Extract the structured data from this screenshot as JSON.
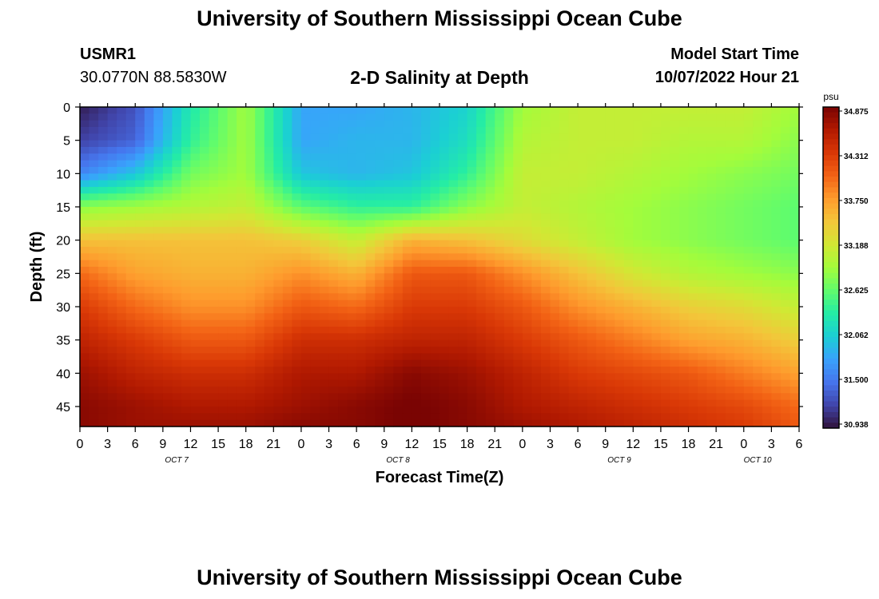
{
  "header": {
    "title": "University of Southern Mississippi Ocean Cube",
    "station_id": "USMR1",
    "coordinates": "30.0770N  88.5830W",
    "subtitle": "2-D Salinity at Depth",
    "model_start_label": "Model Start Time",
    "model_start_value": "10/07/2022 Hour 21"
  },
  "footer": {
    "title": "University of Southern Mississippi Ocean Cube"
  },
  "chart_data": {
    "type": "heatmap",
    "title": "2-D Salinity at Depth",
    "xlabel": "Forecast Time(Z)",
    "ylabel": "Depth (ft)",
    "x_tick_labels": [
      "0",
      "3",
      "6",
      "9",
      "12",
      "15",
      "18",
      "21",
      "0",
      "3",
      "6",
      "9",
      "12",
      "15",
      "18",
      "21",
      "0",
      "3",
      "6",
      "9",
      "12",
      "15",
      "18",
      "21",
      "0",
      "3",
      "6"
    ],
    "x_day_labels": [
      {
        "label": "OCT 7",
        "tick_index": 3.5
      },
      {
        "label": "OCT 8",
        "tick_index": 11.5
      },
      {
        "label": "OCT 9",
        "tick_index": 19.5
      },
      {
        "label": "OCT 10",
        "tick_index": 24.5
      }
    ],
    "x_hours_range": [
      0,
      78
    ],
    "ylim": [
      0,
      48
    ],
    "y_ticks": [
      0,
      5,
      10,
      15,
      20,
      25,
      30,
      35,
      40,
      45
    ],
    "colorbar": {
      "unit": "psu",
      "min": 30.938,
      "max": 34.875,
      "tick_labels": [
        "34.875",
        "34.312",
        "33.750",
        "33.188",
        "32.625",
        "32.062",
        "31.500",
        "30.938"
      ],
      "colors": [
        "#30123b",
        "#4145ab",
        "#4675ed",
        "#39a2fc",
        "#1bcfd4",
        "#24eca6",
        "#61fc6c",
        "#a4fc3b",
        "#d1e834",
        "#f3c63a",
        "#fe9b2d",
        "#f36315",
        "#d93806",
        "#b11901",
        "#7a0403"
      ]
    },
    "field_description": "Salinity (psu) over forecast time (hours since Oct 7 00Z) and depth (ft)",
    "field": {
      "times_h": [
        0,
        6,
        12,
        18,
        24,
        30,
        36,
        42,
        48,
        54,
        60,
        66,
        72,
        78
      ],
      "depths_ft": [
        0,
        5,
        10,
        15,
        20,
        25,
        30,
        35,
        40,
        45,
        48
      ],
      "values": [
        [
          31.0,
          31.3,
          32.3,
          32.9,
          31.8,
          31.8,
          31.9,
          32.1,
          32.9,
          33.1,
          33.1,
          33.1,
          33.1,
          32.9
        ],
        [
          31.2,
          31.4,
          32.4,
          32.9,
          31.8,
          31.9,
          31.9,
          32.2,
          33.0,
          33.1,
          33.1,
          33.0,
          33.0,
          32.8
        ],
        [
          31.6,
          32.0,
          32.7,
          32.9,
          32.0,
          31.9,
          32.0,
          32.4,
          33.1,
          33.1,
          33.0,
          32.9,
          32.8,
          32.7
        ],
        [
          32.8,
          32.9,
          33.0,
          33.1,
          32.6,
          32.4,
          32.4,
          32.8,
          33.1,
          33.0,
          32.9,
          32.8,
          32.7,
          32.6
        ],
        [
          33.5,
          33.5,
          33.5,
          33.5,
          33.4,
          33.1,
          33.6,
          33.5,
          33.3,
          33.1,
          32.9,
          32.8,
          32.7,
          32.6
        ],
        [
          34.0,
          33.7,
          33.6,
          33.6,
          33.8,
          33.6,
          34.1,
          34.1,
          33.8,
          33.5,
          33.2,
          33.0,
          32.9,
          32.8
        ],
        [
          34.3,
          34.0,
          33.8,
          33.8,
          34.1,
          34.0,
          34.3,
          34.3,
          34.1,
          33.8,
          33.6,
          33.4,
          33.3,
          33.1
        ],
        [
          34.5,
          34.3,
          34.1,
          34.1,
          34.4,
          34.4,
          34.5,
          34.5,
          34.3,
          34.1,
          33.9,
          33.7,
          33.6,
          33.4
        ],
        [
          34.7,
          34.5,
          34.4,
          34.4,
          34.6,
          34.6,
          34.8,
          34.7,
          34.5,
          34.3,
          34.2,
          34.1,
          33.9,
          33.7
        ],
        [
          34.8,
          34.7,
          34.6,
          34.6,
          34.7,
          34.8,
          34.9,
          34.8,
          34.6,
          34.5,
          34.4,
          34.3,
          34.2,
          34.0
        ],
        [
          34.8,
          34.7,
          34.7,
          34.7,
          34.8,
          34.8,
          34.9,
          34.8,
          34.7,
          34.6,
          34.5,
          34.4,
          34.3,
          34.1
        ]
      ]
    }
  }
}
